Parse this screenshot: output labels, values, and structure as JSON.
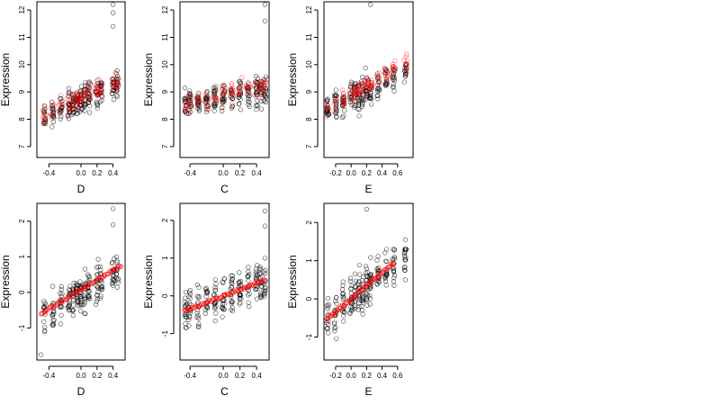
{
  "figure": {
    "layout": "2 rows x 3 columns",
    "colors": {
      "observed": "#000000",
      "fitted": "#ff0000",
      "background": "#ffffff"
    }
  },
  "chart_data": [
    {
      "type": "scatter",
      "panel": "top-left",
      "xlabel": "D",
      "ylabel": "Expression",
      "xlim": [
        -0.55,
        0.55
      ],
      "ylim": [
        6.6,
        12.3
      ],
      "xticks": [
        "-0.4",
        "0.0",
        "0.2",
        "0.4"
      ],
      "xtick_values": [
        -0.4,
        0.0,
        0.2,
        0.4
      ],
      "yticks": [
        "7",
        "8",
        "9",
        "10",
        "11",
        "12"
      ],
      "ytick_values": [
        7,
        8,
        9,
        10,
        11,
        12
      ],
      "x_clusters": [
        -0.45,
        -0.35,
        -0.25,
        -0.15,
        -0.1,
        -0.05,
        0.0,
        0.05,
        0.1,
        0.2,
        0.25,
        0.4,
        0.45
      ],
      "black_y_range": [
        7.6,
        9.9
      ],
      "black_trend": {
        "intercept": 8.7,
        "slope": 1.3
      },
      "red_trend": {
        "intercept": 8.8,
        "slope": 1.4
      },
      "outliers": [
        {
          "x": 0.4,
          "y": 12.2
        },
        {
          "x": 0.4,
          "y": 11.9
        },
        {
          "x": 0.4,
          "y": 11.4
        }
      ]
    },
    {
      "type": "scatter",
      "panel": "top-middle",
      "xlabel": "C",
      "ylabel": "Expression",
      "xlim": [
        -0.52,
        0.55
      ],
      "ylim": [
        6.6,
        12.3
      ],
      "xticks": [
        "-0.4",
        "0.0",
        "0.2",
        "0.4"
      ],
      "xtick_values": [
        -0.4,
        0.0,
        0.2,
        0.4
      ],
      "yticks": [
        "7",
        "8",
        "9",
        "10",
        "11",
        "12"
      ],
      "ytick_values": [
        7,
        8,
        9,
        10,
        11,
        12
      ],
      "x_clusters": [
        -0.45,
        -0.4,
        -0.3,
        -0.2,
        -0.1,
        0.0,
        0.1,
        0.2,
        0.3,
        0.4,
        0.45,
        0.5
      ],
      "black_y_range": [
        7.5,
        10.0
      ],
      "black_trend": {
        "intercept": 8.8,
        "slope": 0.6
      },
      "red_trend": {
        "intercept": 8.9,
        "slope": 0.7
      },
      "outliers": [
        {
          "x": 0.5,
          "y": 12.2
        },
        {
          "x": 0.5,
          "y": 11.6
        }
      ]
    },
    {
      "type": "scatter",
      "panel": "top-right",
      "xlabel": "E",
      "ylabel": "Expression",
      "xlim": [
        -0.35,
        0.8
      ],
      "ylim": [
        6.6,
        12.3
      ],
      "xticks": [
        "-0.2",
        "0.0",
        "0.2",
        "0.4",
        "0.6"
      ],
      "xtick_values": [
        -0.2,
        0.0,
        0.2,
        0.4,
        0.6
      ],
      "yticks": [
        "7",
        "8",
        "9",
        "10",
        "11",
        "12"
      ],
      "ytick_values": [
        7,
        8,
        9,
        10,
        11,
        12
      ],
      "x_clusters": [
        -0.3,
        -0.2,
        -0.1,
        0.0,
        0.05,
        0.1,
        0.15,
        0.2,
        0.25,
        0.35,
        0.45,
        0.55,
        0.7
      ],
      "black_y_range": [
        7.5,
        10.0
      ],
      "black_trend": {
        "intercept": 8.8,
        "slope": 1.4
      },
      "red_trend": {
        "intercept": 8.9,
        "slope": 1.6
      },
      "outliers": [
        {
          "x": 0.25,
          "y": 12.2
        },
        {
          "x": 0.7,
          "y": 9.6
        }
      ]
    },
    {
      "type": "scatter",
      "panel": "bottom-left",
      "xlabel": "D",
      "ylabel": "Expression",
      "xlim": [
        -0.55,
        0.55
      ],
      "ylim": [
        -1.9,
        2.5
      ],
      "xticks": [
        "-0.4",
        "0.0",
        "0.2",
        "0.4"
      ],
      "xtick_values": [
        -0.4,
        0.0,
        0.2,
        0.4
      ],
      "yticks": [
        "-1",
        "0",
        "1",
        "2"
      ],
      "ytick_values": [
        -1,
        0,
        1,
        2
      ],
      "x_clusters": [
        -0.45,
        -0.35,
        -0.25,
        -0.15,
        -0.1,
        -0.05,
        0.0,
        0.05,
        0.1,
        0.2,
        0.25,
        0.4,
        0.45
      ],
      "black_y_range": [
        -1.4,
        1.3
      ],
      "black_trend": {
        "intercept": 0.0,
        "slope": 1.3
      },
      "fitted_line": {
        "x": [
          -0.5,
          0.5
        ],
        "y": [
          -0.6,
          0.75
        ]
      },
      "outliers": [
        {
          "x": 0.4,
          "y": 2.35
        },
        {
          "x": 0.4,
          "y": 1.9
        },
        {
          "x": -0.5,
          "y": -1.75
        }
      ]
    },
    {
      "type": "scatter",
      "panel": "bottom-middle",
      "xlabel": "C",
      "ylabel": "Expression",
      "xlim": [
        -0.52,
        0.55
      ],
      "ylim": [
        -1.7,
        2.45
      ],
      "xticks": [
        "-0.4",
        "0.0",
        "0.2",
        "0.4"
      ],
      "xtick_values": [
        -0.4,
        0.0,
        0.2,
        0.4
      ],
      "yticks": [
        "-1",
        "0",
        "1",
        "2"
      ],
      "ytick_values": [
        -1,
        0,
        1,
        2
      ],
      "x_clusters": [
        -0.45,
        -0.4,
        -0.3,
        -0.2,
        -0.1,
        0.0,
        0.1,
        0.2,
        0.3,
        0.4,
        0.45,
        0.5
      ],
      "black_y_range": [
        -1.3,
        1.3
      ],
      "black_trend": {
        "intercept": 0.0,
        "slope": 0.85
      },
      "fitted_line": {
        "x": [
          -0.47,
          0.5
        ],
        "y": [
          -0.4,
          0.42
        ]
      },
      "outliers": [
        {
          "x": 0.5,
          "y": 2.25
        },
        {
          "x": 0.5,
          "y": 1.85
        }
      ]
    },
    {
      "type": "scatter",
      "panel": "bottom-right",
      "xlabel": "E",
      "ylabel": "Expression",
      "xlim": [
        -0.35,
        0.8
      ],
      "ylim": [
        -1.6,
        2.5
      ],
      "xticks": [
        "-0.2",
        "0.0",
        "0.2",
        "0.4",
        "0.6"
      ],
      "xtick_values": [
        -0.2,
        0.0,
        0.2,
        0.4,
        0.6
      ],
      "yticks": [
        "-1",
        "0",
        "1",
        "2"
      ],
      "ytick_values": [
        -1,
        0,
        1,
        2
      ],
      "x_clusters": [
        -0.3,
        -0.2,
        -0.1,
        0.0,
        0.05,
        0.1,
        0.15,
        0.2,
        0.25,
        0.35,
        0.45,
        0.55,
        0.7
      ],
      "black_y_range": [
        -1.3,
        1.3
      ],
      "black_trend": {
        "intercept": 0.0,
        "slope": 1.7
      },
      "fitted_line": {
        "x": [
          -0.32,
          0.55
        ],
        "y": [
          -0.55,
          0.95
        ]
      },
      "outliers": [
        {
          "x": 0.2,
          "y": 2.35
        },
        {
          "x": 0.7,
          "y": 1.55
        },
        {
          "x": 0.7,
          "y": 1.25
        },
        {
          "x": 0.7,
          "y": 0.5
        }
      ]
    }
  ]
}
